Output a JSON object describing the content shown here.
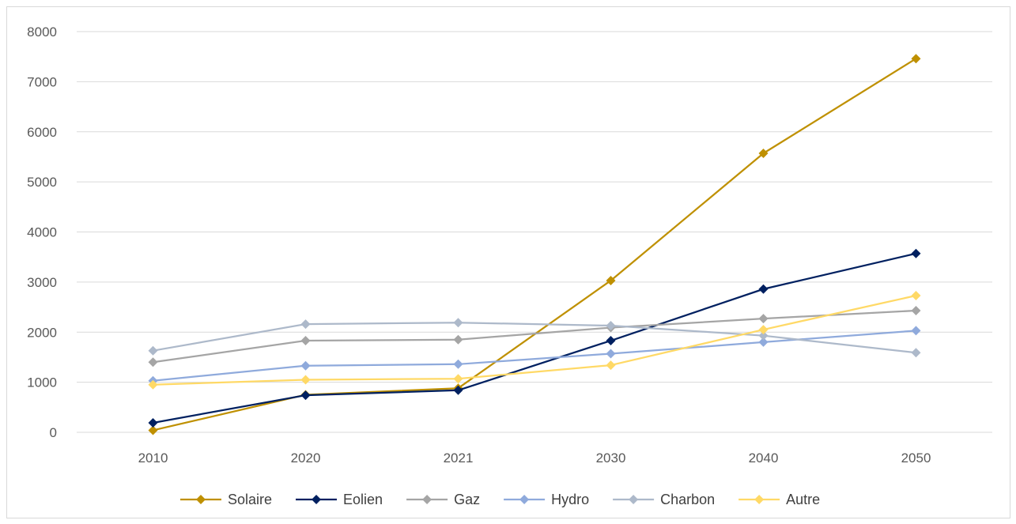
{
  "chart_data": {
    "type": "line",
    "title": "",
    "xlabel": "",
    "ylabel": "",
    "categories": [
      "2010",
      "2020",
      "2021",
      "2030",
      "2040",
      "2050"
    ],
    "ylim": [
      0,
      8000
    ],
    "yticks": [
      0,
      1000,
      2000,
      3000,
      4000,
      5000,
      6000,
      7000,
      8000
    ],
    "grid": "horizontal",
    "legend": "bottom",
    "marker": "diamond",
    "series": [
      {
        "name": "Solaire",
        "color": "#bf9000",
        "values": [
          40,
          750,
          880,
          3030,
          5570,
          7460
        ]
      },
      {
        "name": "Eolien",
        "color": "#002060",
        "values": [
          190,
          740,
          840,
          1830,
          2860,
          3570
        ]
      },
      {
        "name": "Gaz",
        "color": "#a5a5a5",
        "values": [
          1400,
          1830,
          1850,
          2090,
          2270,
          2430
        ]
      },
      {
        "name": "Hydro",
        "color": "#8faadc",
        "values": [
          1030,
          1330,
          1360,
          1570,
          1800,
          2030
        ]
      },
      {
        "name": "Charbon",
        "color": "#adb9ca",
        "values": [
          1630,
          2160,
          2190,
          2130,
          1930,
          1590
        ]
      },
      {
        "name": "Autre",
        "color": "#ffd966",
        "values": [
          950,
          1050,
          1070,
          1340,
          2050,
          2730
        ]
      }
    ]
  }
}
